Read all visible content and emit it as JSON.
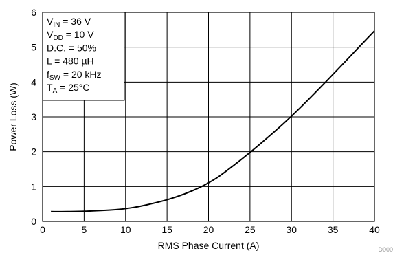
{
  "chart_data": {
    "type": "line",
    "xlabel": "RMS Phase Current (A)",
    "ylabel": "Power Loss (W)",
    "xlim": [
      0,
      40
    ],
    "ylim": [
      0,
      6
    ],
    "xticks": [
      0,
      5,
      10,
      15,
      20,
      25,
      30,
      35,
      40
    ],
    "yticks": [
      0,
      1,
      2,
      3,
      4,
      5,
      6
    ],
    "grid": true,
    "annotations": [
      {
        "main": "V",
        "sub": "IN",
        "rest": " = 36 V"
      },
      {
        "main": "V",
        "sub": "DD",
        "rest": " = 10 V"
      },
      {
        "main": "D.C. = 50%",
        "sub": "",
        "rest": ""
      },
      {
        "main": "L = 480 µH",
        "sub": "",
        "rest": ""
      },
      {
        "main": "f",
        "sub": "SW",
        "rest": " = 20 kHz"
      },
      {
        "main": "T",
        "sub": "A",
        "rest": " = 25°C"
      }
    ],
    "figure_id": "D000",
    "series": [
      {
        "x": [
          1,
          3,
          5,
          7,
          9,
          11,
          13,
          15,
          17,
          19,
          21,
          23,
          25,
          27,
          29,
          31,
          33,
          35,
          37,
          39,
          40
        ],
        "y": [
          0.28,
          0.28,
          0.29,
          0.31,
          0.34,
          0.4,
          0.5,
          0.62,
          0.78,
          0.98,
          1.25,
          1.6,
          1.98,
          2.38,
          2.8,
          3.25,
          3.73,
          4.22,
          4.72,
          5.22,
          5.47
        ]
      }
    ]
  }
}
